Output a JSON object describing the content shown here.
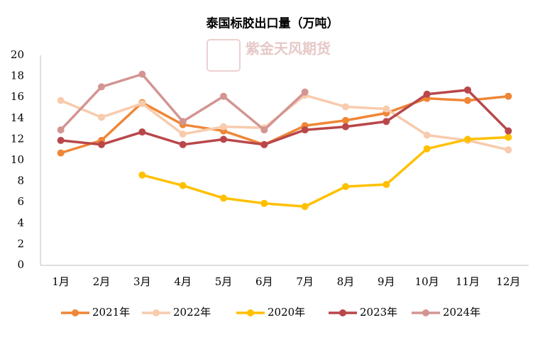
{
  "chart_data": {
    "type": "line",
    "title": "泰国标胶出口量（万吨）",
    "watermark": "紫金天风期货",
    "categories": [
      "1月",
      "2月",
      "3月",
      "4月",
      "5月",
      "6月",
      "7月",
      "8月",
      "9月",
      "10月",
      "11月",
      "12月"
    ],
    "series": [
      {
        "name": "2021年",
        "color": "#ef8636",
        "values": [
          10.7,
          11.9,
          15.5,
          13.4,
          12.8,
          11.5,
          13.3,
          13.8,
          14.5,
          15.9,
          15.7,
          16.1
        ]
      },
      {
        "name": "2022年",
        "color": "#f8cbad",
        "values": [
          15.7,
          14.1,
          15.4,
          12.5,
          13.2,
          13.1,
          16.2,
          15.1,
          14.9,
          12.4,
          11.9,
          11.0
        ]
      },
      {
        "name": "2020年",
        "color": "#ffc000",
        "values": [
          null,
          null,
          8.6,
          7.6,
          6.4,
          5.9,
          5.6,
          7.5,
          7.7,
          11.1,
          12.0,
          12.2
        ]
      },
      {
        "name": "2023年",
        "color": "#b9474a",
        "values": [
          11.9,
          11.5,
          12.7,
          11.5,
          12.0,
          11.5,
          12.9,
          13.2,
          13.7,
          16.3,
          16.7,
          12.8
        ]
      },
      {
        "name": "2024年",
        "color": "#d39592",
        "values": [
          12.9,
          17.0,
          18.2,
          13.7,
          16.1,
          12.9,
          16.5,
          null,
          null,
          null,
          null,
          null
        ]
      }
    ],
    "ylim": [
      0,
      20
    ],
    "yticks": [
      0,
      2,
      4,
      6,
      8,
      10,
      12,
      14,
      16,
      18,
      20
    ],
    "grid": false
  }
}
